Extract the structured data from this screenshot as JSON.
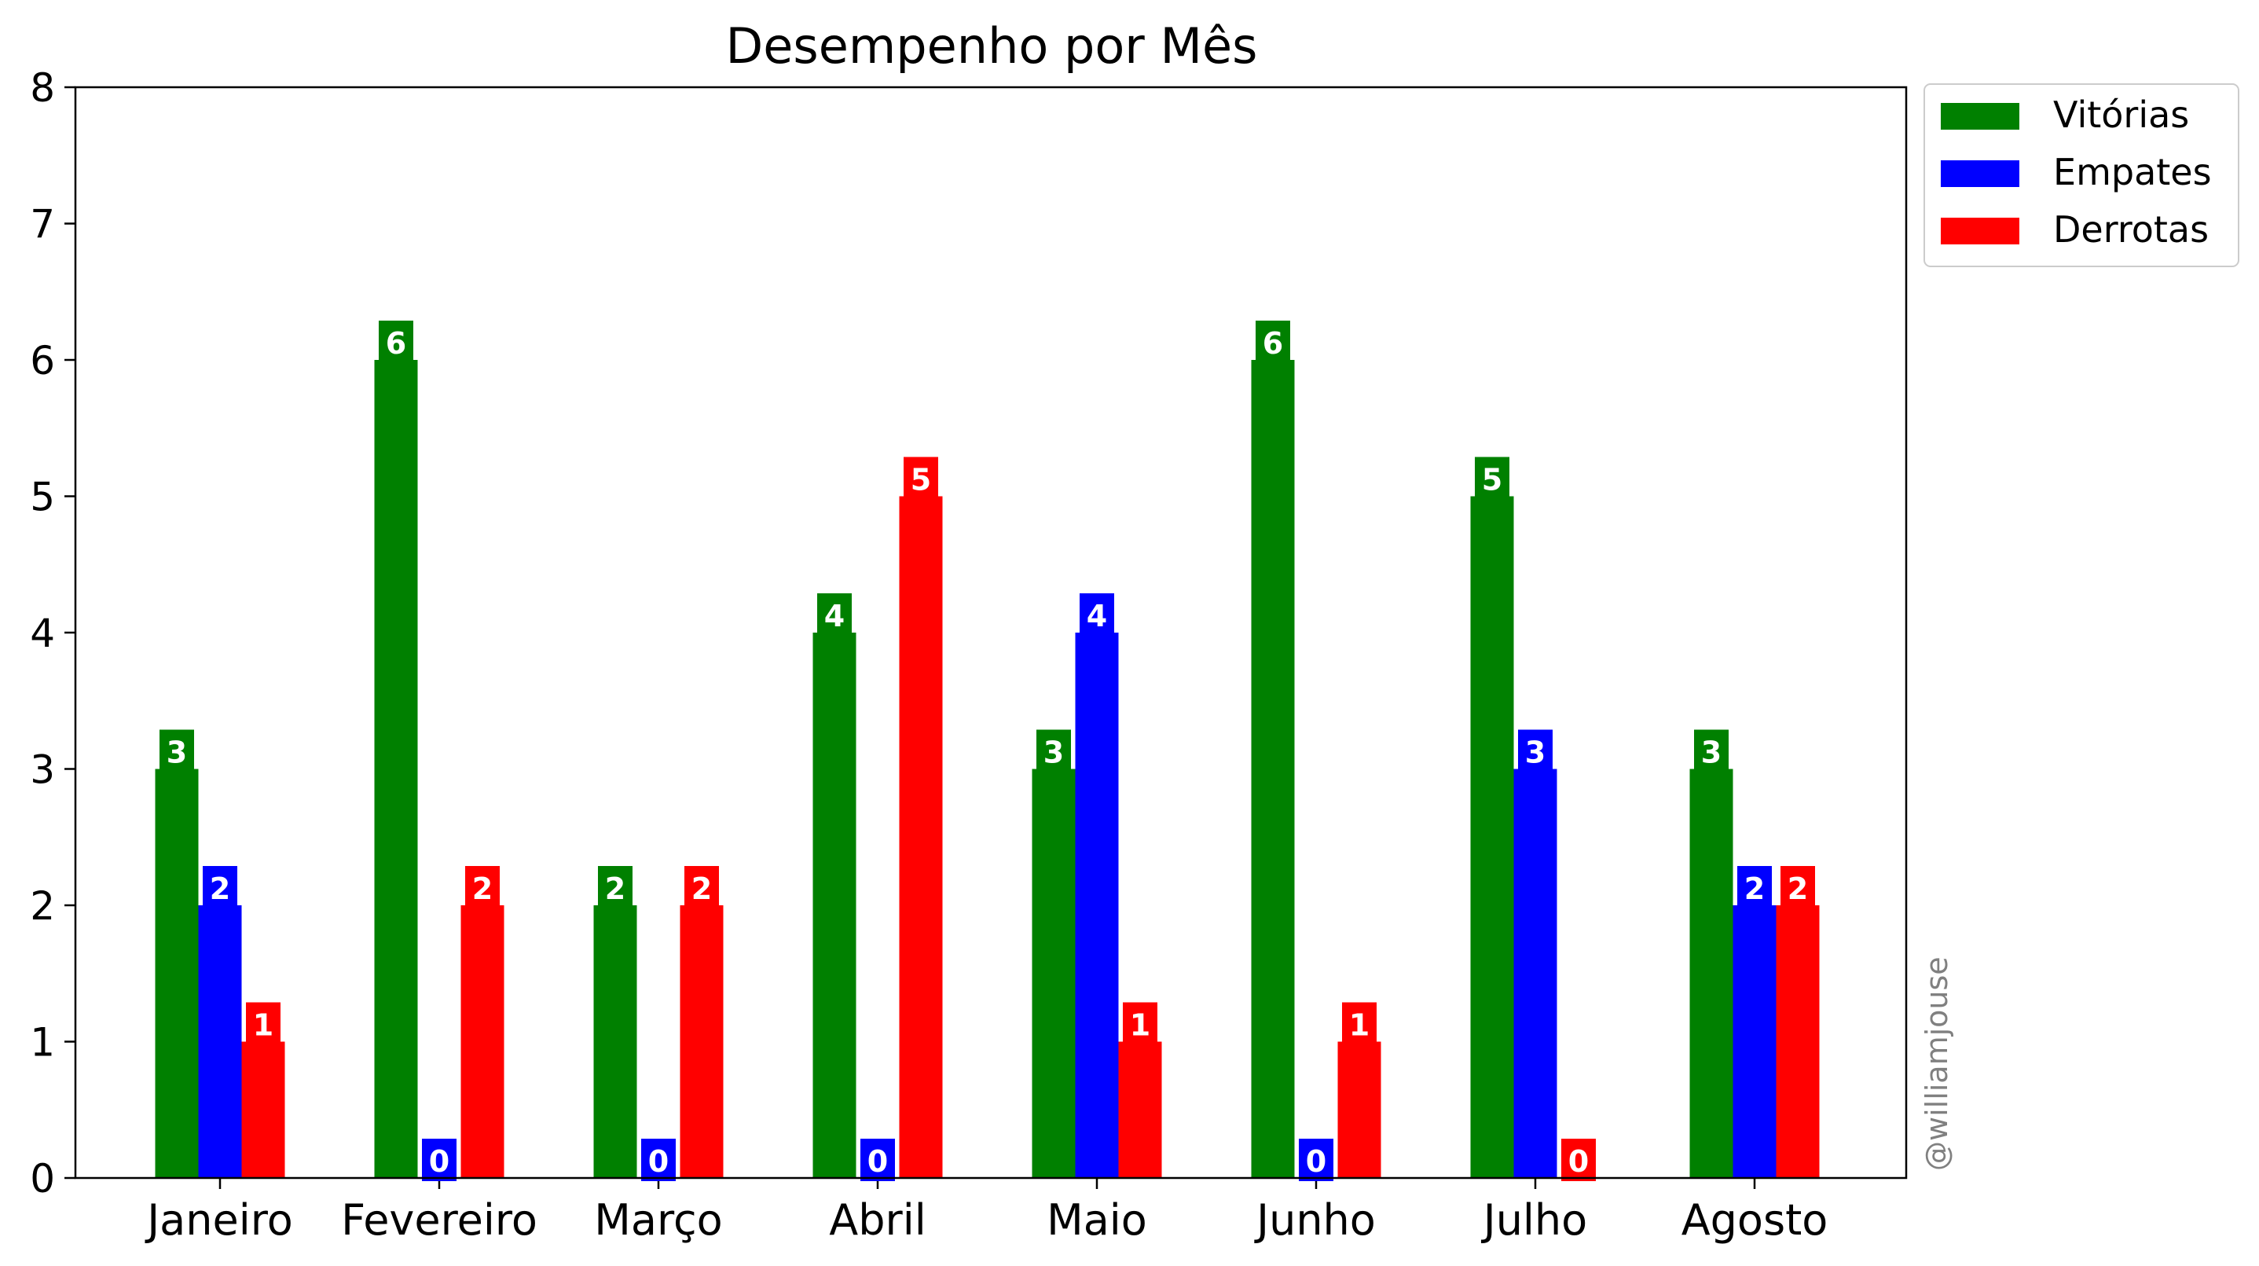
{
  "chart_data": {
    "type": "bar",
    "title": "Desempenho por Mês",
    "xlabel": "",
    "ylabel": "",
    "categories": [
      "Janeiro",
      "Fevereiro",
      "Março",
      "Abril",
      "Maio",
      "Junho",
      "Julho",
      "Agosto"
    ],
    "series": [
      {
        "name": "Vitórias",
        "color": "#008000",
        "values": [
          3,
          6,
          2,
          4,
          3,
          6,
          5,
          3
        ]
      },
      {
        "name": "Empates",
        "color": "#0000ff",
        "values": [
          2,
          0,
          0,
          0,
          4,
          0,
          3,
          2
        ]
      },
      {
        "name": "Derrotas",
        "color": "#ff0000",
        "values": [
          1,
          2,
          2,
          5,
          1,
          1,
          0,
          2
        ]
      }
    ],
    "ylim": [
      0,
      8
    ],
    "yticks": [
      "0",
      "1",
      "2",
      "3",
      "4",
      "5",
      "6",
      "7",
      "8"
    ],
    "grid": false,
    "legend": "outside-top-right",
    "data_labels": true
  },
  "watermark": "@williamjouse"
}
